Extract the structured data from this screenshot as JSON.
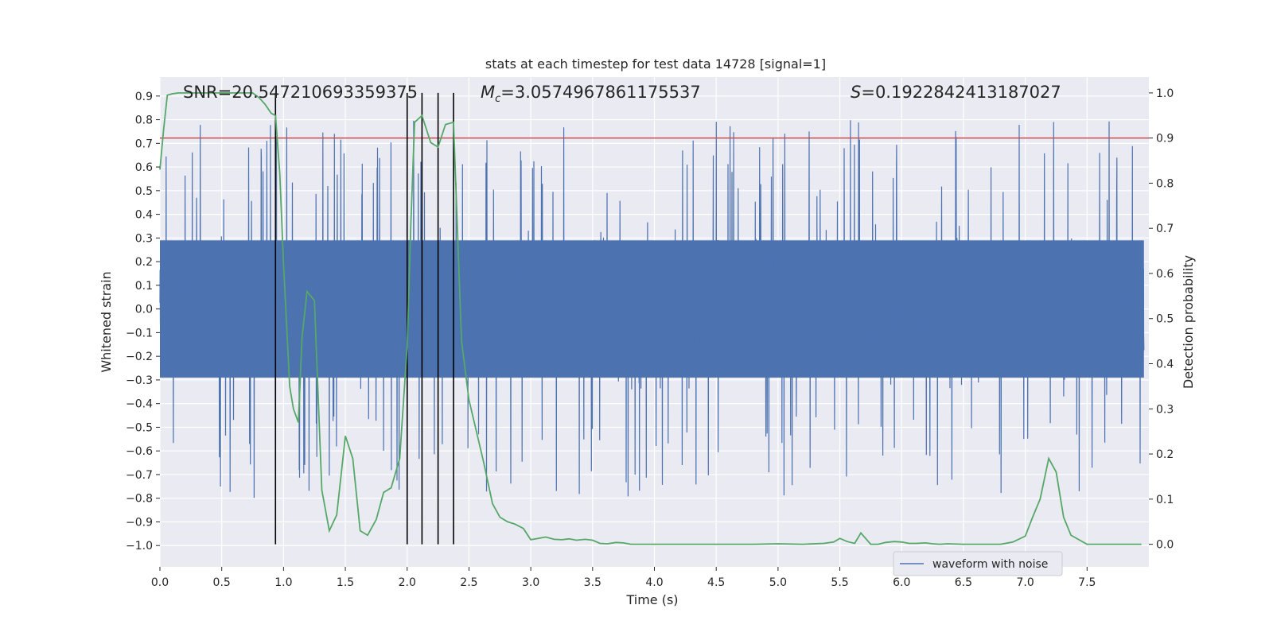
{
  "chart_data": {
    "type": "line",
    "title": "stats at each timestep for test data 14728 [signal=1]",
    "xlabel": "Time (s)",
    "ylabel": "Whitened strain",
    "y2label": "Detection probability",
    "xlim": [
      0.0,
      8.0
    ],
    "ylim": [
      -1.09,
      0.98
    ],
    "y2lim": [
      -0.05,
      1.035
    ],
    "x_ticks": [
      "0.0",
      "0.5",
      "1.0",
      "1.5",
      "2.0",
      "2.5",
      "3.0",
      "3.5",
      "4.0",
      "4.5",
      "5.0",
      "5.5",
      "6.0",
      "6.5",
      "7.0",
      "7.5"
    ],
    "y_ticks": [
      "0.9",
      "0.8",
      "0.7",
      "0.6",
      "0.5",
      "0.4",
      "0.3",
      "0.2",
      "0.1",
      "0.0",
      "−0.1",
      "−0.2",
      "−0.3",
      "−0.4",
      "−0.5",
      "−0.6",
      "−0.7",
      "−0.8",
      "−0.9",
      "−1.0"
    ],
    "y2_ticks": [
      "1.0",
      "0.9",
      "0.8",
      "0.7",
      "0.6",
      "0.5",
      "0.4",
      "0.3",
      "0.2",
      "0.1",
      "0.0"
    ],
    "annotations": {
      "snr": "SNR=20.547210693359375",
      "mc_symbol": "M",
      "mc_sub": "c",
      "mc_value": "=3.0574967861175537",
      "s_symbol": "S",
      "s_value": "=0.1922842413187027"
    },
    "grid": true,
    "legend": {
      "entries": [
        "waveform with noise"
      ],
      "placement": "lower-right"
    },
    "colors": {
      "waveform": "#4c72b0",
      "probability": "#55a868",
      "threshold": "#c44e52",
      "event_lines": "#000000",
      "plot_bg": "#eaeaf2",
      "grid": "#ffffff"
    },
    "threshold": 0.9,
    "event_times": [
      0.935,
      2.0,
      2.12,
      2.25,
      2.375
    ],
    "waveform": {
      "name": "waveform with noise",
      "typical_band": [
        -0.43,
        0.43
      ],
      "spike_max": 0.9,
      "spike_min": -1.0
    },
    "series": [
      {
        "name": "",
        "axis": "right",
        "x": [
          0.0,
          0.03,
          0.06,
          0.1,
          0.15,
          0.2,
          0.3,
          0.4,
          0.5,
          0.6,
          0.7,
          0.75,
          0.8,
          0.85,
          0.9,
          0.935,
          0.97,
          1.0,
          1.05,
          1.08,
          1.12,
          1.15,
          1.19,
          1.25,
          1.31,
          1.37,
          1.43,
          1.5,
          1.56,
          1.62,
          1.68,
          1.75,
          1.81,
          1.87,
          1.94,
          2.0,
          2.03,
          2.06,
          2.12,
          2.19,
          2.25,
          2.31,
          2.375,
          2.44,
          2.5,
          2.56,
          2.62,
          2.69,
          2.75,
          2.81,
          2.87,
          2.94,
          3.0,
          3.06,
          3.12,
          3.19,
          3.25,
          3.31,
          3.37,
          3.44,
          3.5,
          3.56,
          3.62,
          3.69,
          3.75,
          3.81,
          3.87,
          4.0,
          4.5,
          4.8,
          5.0,
          5.2,
          5.37,
          5.45,
          5.5,
          5.56,
          5.62,
          5.67,
          5.75,
          5.81,
          5.87,
          5.94,
          6.0,
          6.06,
          6.12,
          6.19,
          6.25,
          6.31,
          6.37,
          6.5,
          6.6,
          6.7,
          6.8,
          6.9,
          7.0,
          7.06,
          7.12,
          7.19,
          7.25,
          7.31,
          7.37,
          7.5,
          7.94
        ],
        "values": [
          0.83,
          0.92,
          0.995,
          0.998,
          1.0,
          1.0,
          1.0,
          1.0,
          1.0,
          1.0,
          1.0,
          1.0,
          0.99,
          0.975,
          0.955,
          0.95,
          0.82,
          0.62,
          0.35,
          0.3,
          0.27,
          0.46,
          0.56,
          0.54,
          0.12,
          0.03,
          0.065,
          0.24,
          0.19,
          0.03,
          0.02,
          0.055,
          0.115,
          0.125,
          0.19,
          0.44,
          0.71,
          0.935,
          0.95,
          0.89,
          0.88,
          0.93,
          0.935,
          0.45,
          0.32,
          0.25,
          0.18,
          0.09,
          0.06,
          0.05,
          0.045,
          0.035,
          0.01,
          0.013,
          0.016,
          0.011,
          0.01,
          0.012,
          0.009,
          0.011,
          0.009,
          0.002,
          0.001,
          0.004,
          0.003,
          0.0,
          0.0,
          0.0,
          0.0,
          0.0,
          0.001,
          0.0,
          0.002,
          0.005,
          0.013,
          0.006,
          0.002,
          0.025,
          0.0,
          0.0,
          0.004,
          0.006,
          0.005,
          0.002,
          0.002,
          0.003,
          0.001,
          0.0,
          0.001,
          0.0,
          0.0,
          0.0,
          0.0,
          0.005,
          0.018,
          0.06,
          0.1,
          0.19,
          0.16,
          0.06,
          0.02,
          0.0,
          0.0
        ]
      }
    ]
  }
}
